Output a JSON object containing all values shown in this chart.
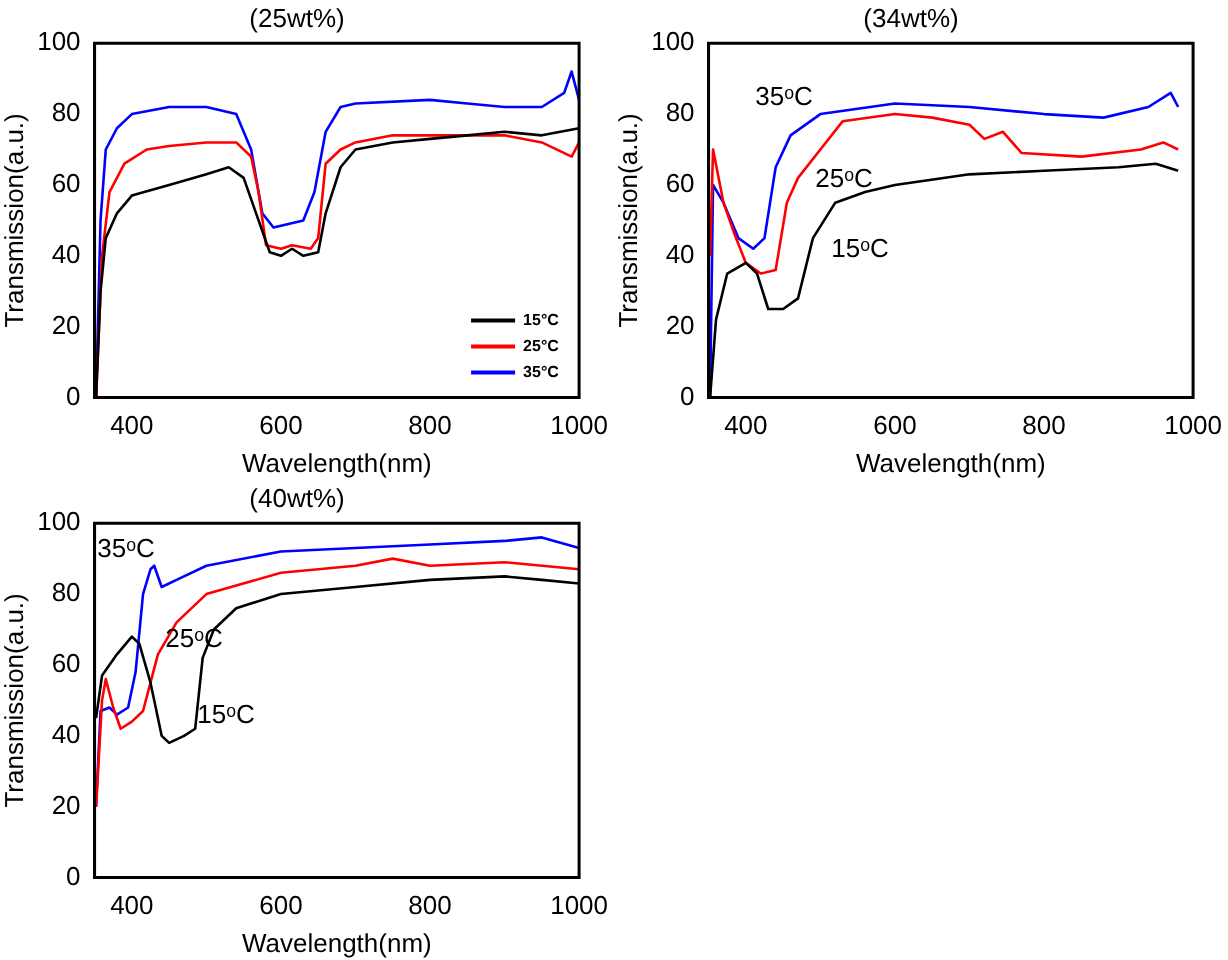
{
  "chart_data": [
    {
      "type": "line",
      "title": "(25wt%)",
      "xlabel": "Wavelength(nm)",
      "ylabel": "Transmission(a.u.)",
      "xlim": [
        350,
        1000
      ],
      "xticks": [
        400,
        600,
        800,
        1000
      ],
      "ylim": [
        0,
        100
      ],
      "yticks": [
        0,
        20,
        40,
        60,
        80,
        100
      ],
      "grid": false,
      "legend": "bottom right",
      "marker": "none",
      "line_style": "solid",
      "series": [
        {
          "name": "15°C",
          "color": "#000000",
          "x": [
            352,
            358,
            365,
            380,
            400,
            450,
            500,
            530,
            550,
            570,
            585,
            600,
            615,
            630,
            650,
            660,
            680,
            700,
            750,
            800,
            850,
            900,
            950,
            1000
          ],
          "values": [
            0,
            30,
            45,
            52,
            57,
            60,
            63,
            65,
            62,
            50,
            41,
            40,
            42,
            40,
            41,
            52,
            65,
            70,
            72,
            73,
            74,
            75,
            74,
            76
          ]
        },
        {
          "name": "25°C",
          "color": "#ff0000",
          "x": [
            352,
            360,
            370,
            390,
            420,
            450,
            500,
            540,
            560,
            570,
            580,
            600,
            615,
            640,
            650,
            660,
            680,
            700,
            750,
            800,
            850,
            900,
            950,
            990,
            1000
          ],
          "values": [
            0,
            40,
            58,
            66,
            70,
            71,
            72,
            72,
            68,
            58,
            43,
            42,
            43,
            42,
            45,
            66,
            70,
            72,
            74,
            74,
            74,
            74,
            72,
            68,
            72
          ]
        },
        {
          "name": "35°C",
          "color": "#0000ff",
          "x": [
            352,
            358,
            365,
            380,
            400,
            450,
            500,
            540,
            560,
            575,
            590,
            610,
            630,
            645,
            660,
            680,
            700,
            800,
            850,
            900,
            950,
            980,
            990,
            1000
          ],
          "values": [
            0,
            50,
            70,
            76,
            80,
            82,
            82,
            80,
            70,
            52,
            48,
            49,
            50,
            58,
            75,
            82,
            83,
            84,
            83,
            82,
            82,
            86,
            92,
            84
          ]
        }
      ]
    },
    {
      "type": "line",
      "title": "(34wt%)",
      "xlabel": "Wavelength(nm)",
      "ylabel": "Transmission(a.u.)",
      "xlim": [
        350,
        1000
      ],
      "xticks": [
        400,
        600,
        800,
        1000
      ],
      "ylim": [
        0,
        100
      ],
      "yticks": [
        0,
        20,
        40,
        60,
        80,
        100
      ],
      "grid": false,
      "legend": false,
      "marker": "none",
      "line_style": "solid",
      "series": [
        {
          "name": "15ᵒC",
          "color": "#000000",
          "x": [
            352,
            360,
            375,
            400,
            415,
            430,
            450,
            470,
            490,
            520,
            560,
            600,
            700,
            800,
            900,
            950,
            980
          ],
          "values": [
            0,
            22,
            35,
            38,
            35,
            25,
            25,
            28,
            45,
            55,
            58,
            60,
            63,
            64,
            65,
            66,
            64
          ]
        },
        {
          "name": "25ᵒC",
          "color": "#ff0000",
          "x": [
            352,
            356,
            370,
            385,
            400,
            420,
            440,
            455,
            470,
            500,
            530,
            600,
            650,
            700,
            720,
            745,
            770,
            850,
            930,
            960,
            980
          ],
          "values": [
            40,
            70,
            55,
            46,
            38,
            35,
            36,
            55,
            62,
            70,
            78,
            80,
            79,
            77,
            73,
            75,
            69,
            68,
            70,
            72,
            70
          ]
        },
        {
          "name": "35ᵒC",
          "color": "#0000ff",
          "x": [
            352,
            356,
            370,
            390,
            410,
            425,
            440,
            460,
            500,
            600,
            700,
            800,
            880,
            940,
            970,
            980
          ],
          "values": [
            0,
            60,
            55,
            45,
            42,
            45,
            65,
            74,
            80,
            83,
            82,
            80,
            79,
            82,
            86,
            82
          ]
        }
      ]
    },
    {
      "type": "line",
      "title": "(40wt%)",
      "xlabel": "Wavelength(nm)",
      "ylabel": "Transmission(a.u.)",
      "xlim": [
        350,
        1000
      ],
      "xticks": [
        400,
        600,
        800,
        1000
      ],
      "ylim": [
        0,
        100
      ],
      "yticks": [
        0,
        20,
        40,
        60,
        80,
        100
      ],
      "grid": false,
      "legend": false,
      "marker": "none",
      "line_style": "solid",
      "series": [
        {
          "name": "15ᵒC",
          "color": "#000000",
          "x": [
            352,
            360,
            380,
            400,
            410,
            425,
            440,
            450,
            470,
            485,
            495,
            510,
            540,
            600,
            700,
            800,
            900,
            950,
            1000
          ],
          "values": [
            45,
            57,
            63,
            68,
            66,
            55,
            40,
            38,
            40,
            42,
            62,
            70,
            76,
            80,
            82,
            84,
            85,
            84,
            83
          ]
        },
        {
          "name": "25ᵒC",
          "color": "#ff0000",
          "x": [
            352,
            360,
            365,
            375,
            385,
            400,
            415,
            425,
            435,
            460,
            500,
            600,
            700,
            750,
            800,
            900,
            1000
          ],
          "values": [
            20,
            50,
            56,
            48,
            42,
            44,
            47,
            55,
            63,
            72,
            80,
            86,
            88,
            90,
            88,
            89,
            87
          ]
        },
        {
          "name": "35ᵒC",
          "color": "#0000ff",
          "x": [
            352,
            358,
            370,
            380,
            395,
            405,
            415,
            425,
            430,
            440,
            460,
            500,
            600,
            700,
            800,
            900,
            950,
            1000
          ],
          "values": [
            20,
            47,
            48,
            46,
            48,
            58,
            80,
            87,
            88,
            82,
            84,
            88,
            92,
            93,
            94,
            95,
            96,
            93
          ]
        }
      ]
    }
  ]
}
